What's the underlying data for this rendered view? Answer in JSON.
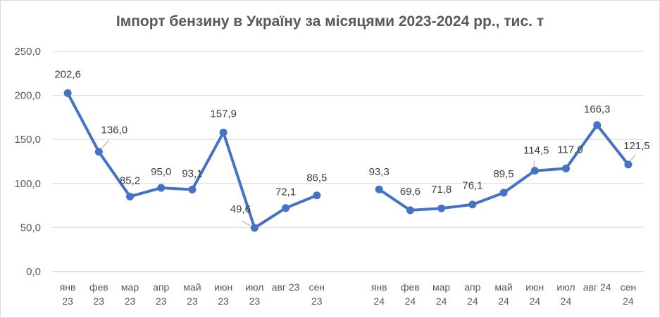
{
  "chart_data": {
    "type": "line",
    "title": "Імпорт бензину в Україну за місяцями 2023-2024 рр., тис. т",
    "ylim": [
      0,
      250
    ],
    "yticks": [
      "0,0",
      "50,0",
      "100,0",
      "150,0",
      "200,0",
      "250,0"
    ],
    "grid": true,
    "legend": "none",
    "categories": [
      [
        "янв",
        "23"
      ],
      [
        "фев",
        "23"
      ],
      [
        "мар",
        "23"
      ],
      [
        "апр",
        "23"
      ],
      [
        "май",
        "23"
      ],
      [
        "июн",
        "23"
      ],
      [
        "июл",
        "23"
      ],
      [
        "авг 23",
        ""
      ],
      [
        "сен",
        "23"
      ],
      [
        "",
        ""
      ],
      [
        "янв",
        "24"
      ],
      [
        "фев",
        "24"
      ],
      [
        "мар",
        "24"
      ],
      [
        "апр",
        "24"
      ],
      [
        "май",
        "24"
      ],
      [
        "июн",
        "24"
      ],
      [
        "июл",
        "24"
      ],
      [
        "авг 24",
        ""
      ],
      [
        "сен",
        "24"
      ]
    ],
    "values": [
      202.6,
      136.0,
      85.2,
      95.0,
      93.1,
      157.9,
      49.6,
      72.1,
      86.5,
      null,
      93.3,
      69.6,
      71.8,
      76.1,
      89.5,
      114.5,
      117.0,
      166.3,
      121.5
    ],
    "labels": [
      "202,6",
      "136,0",
      "85,2",
      "95,0",
      "93,1",
      "157,9",
      "49,6",
      "72,1",
      "86,5",
      "",
      "93,3",
      "69,6",
      "71,8",
      "76,1",
      "89,5",
      "114,5",
      "117,0",
      "166,3",
      "121,5"
    ],
    "colors": {
      "line": "#4472c4",
      "grid": "#d9d9d9",
      "axis": "#bfbfbf"
    }
  }
}
